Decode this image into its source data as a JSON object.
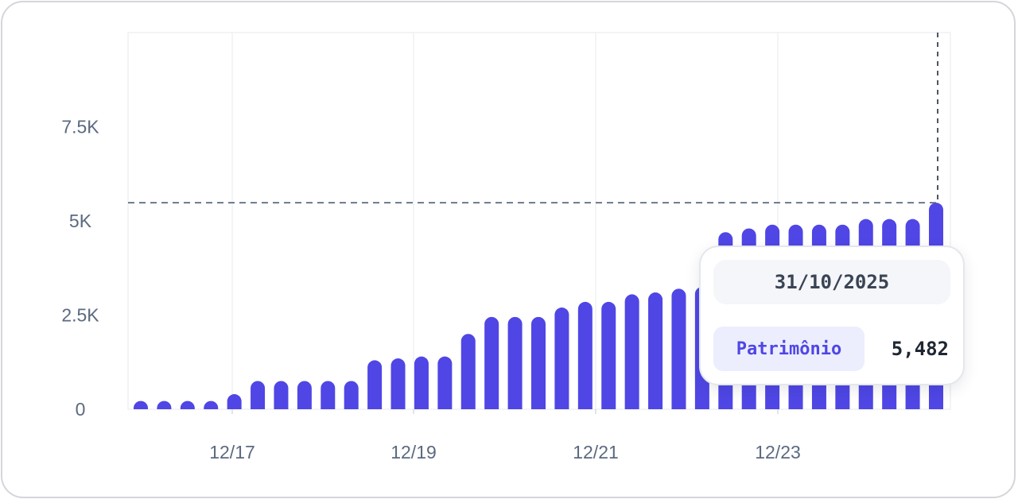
{
  "chart_data": {
    "type": "bar",
    "series": [
      {
        "color": "#4f46e5",
        "values": [
          220,
          220,
          220,
          220,
          400,
          750,
          750,
          750,
          750,
          750,
          1300,
          1350,
          1400,
          1400,
          2000,
          2450,
          2450,
          2450,
          2700,
          2850,
          2850,
          3050,
          3100,
          3200,
          3250,
          4700,
          4800,
          4900,
          4900,
          4900,
          4900,
          5050,
          5050,
          5050,
          5482
        ]
      }
    ],
    "x_tick_labels": [
      "12/17",
      "12/19",
      "12/21",
      "12/23"
    ],
    "y_tick_labels": [
      "0",
      "2.5K",
      "5K",
      "7.5K"
    ],
    "y_ticks": [
      0,
      2500,
      5000,
      7500
    ],
    "ylim": [
      0,
      10000
    ],
    "grid": true,
    "highlight": {
      "date": "31/10/2025",
      "series_label": "Patrimônio",
      "value": 5482,
      "value_label": "5,482",
      "crosshair": true
    }
  }
}
